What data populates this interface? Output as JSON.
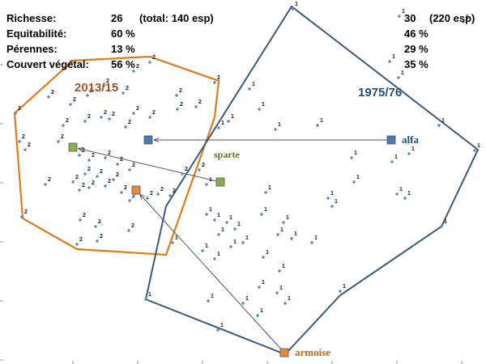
{
  "chart_data": {
    "type": "scatter",
    "title": "",
    "xlabel": "",
    "ylabel": "",
    "grid": false,
    "stats": {
      "rows": [
        {
          "label": "Richesse:",
          "v1": "26",
          "note1": "(total: 140 esp)",
          "v2": "30",
          "note2": "(220 esp)"
        },
        {
          "label": "Equitabilité:",
          "v1": "60 %",
          "note1": "",
          "v2": "46 %",
          "note2": ""
        },
        {
          "label": "Pérennes:",
          "v1": "13 %",
          "note1": "",
          "v2": "29 %",
          "note2": ""
        },
        {
          "label": "Couvert végétal:",
          "v1": "56 %",
          "note1": "",
          "v2": "35 %",
          "note2": ""
        }
      ]
    },
    "groups": [
      {
        "name": "2013/15",
        "color": "#e07b1a",
        "hull": [
          [
            18,
            140
          ],
          [
            90,
            75
          ],
          [
            185,
            70
          ],
          [
            270,
            100
          ],
          [
            265,
            145
          ],
          [
            205,
            315
          ],
          [
            95,
            308
          ],
          [
            28,
            270
          ]
        ]
      },
      {
        "name": "1975/76",
        "color": "#3a5a7d",
        "hull": [
          [
            360,
            8
          ],
          [
            590,
            185
          ],
          [
            545,
            280
          ],
          [
            420,
            365
          ],
          [
            352,
            438
          ],
          [
            180,
            370
          ],
          [
            205,
            255
          ]
        ]
      }
    ],
    "points": [
      {
        "x": 361,
        "y": 11,
        "g": "1"
      },
      {
        "x": 493,
        "y": 20,
        "g": "1"
      },
      {
        "x": 572,
        "y": 27,
        "g": "1"
      },
      {
        "x": 185,
        "y": 77,
        "g": "2"
      },
      {
        "x": 265,
        "y": 102,
        "g": "2"
      },
      {
        "x": 481,
        "y": 76,
        "g": "1"
      },
      {
        "x": 492,
        "y": 96,
        "g": "1"
      },
      {
        "x": 19,
        "y": 140,
        "g": "2"
      },
      {
        "x": 60,
        "y": 120,
        "g": "2"
      },
      {
        "x": 87,
        "y": 129,
        "g": "2"
      },
      {
        "x": 108,
        "y": 118,
        "g": "2"
      },
      {
        "x": 128,
        "y": 106,
        "g": "2"
      },
      {
        "x": 152,
        "y": 115,
        "g": "2"
      },
      {
        "x": 165,
        "y": 88,
        "g": "2"
      },
      {
        "x": 218,
        "y": 118,
        "g": "2"
      },
      {
        "x": 308,
        "y": 110,
        "g": "1"
      },
      {
        "x": 242,
        "y": 132,
        "g": "2"
      },
      {
        "x": 219,
        "y": 135,
        "g": "2"
      },
      {
        "x": 185,
        "y": 145,
        "g": "2"
      },
      {
        "x": 78,
        "y": 155,
        "g": "2"
      },
      {
        "x": 105,
        "y": 150,
        "g": "2"
      },
      {
        "x": 125,
        "y": 145,
        "g": "2"
      },
      {
        "x": 135,
        "y": 147,
        "g": "2"
      },
      {
        "x": 155,
        "y": 157,
        "g": "2"
      },
      {
        "x": 165,
        "y": 140,
        "g": "2"
      },
      {
        "x": 320,
        "y": 135,
        "g": "1"
      },
      {
        "x": 340,
        "y": 160,
        "g": "1"
      },
      {
        "x": 392,
        "y": 155,
        "g": "1"
      },
      {
        "x": 282,
        "y": 150,
        "g": "1"
      },
      {
        "x": 270,
        "y": 158,
        "g": "1"
      },
      {
        "x": 542,
        "y": 155,
        "g": "1"
      },
      {
        "x": 24,
        "y": 175,
        "g": "2"
      },
      {
        "x": 31,
        "y": 185,
        "g": "2"
      },
      {
        "x": 72,
        "y": 175,
        "g": "2"
      },
      {
        "x": 98,
        "y": 192,
        "g": "2"
      },
      {
        "x": 110,
        "y": 198,
        "g": "2"
      },
      {
        "x": 130,
        "y": 195,
        "g": "2"
      },
      {
        "x": 145,
        "y": 203,
        "g": "2"
      },
      {
        "x": 160,
        "y": 210,
        "g": "2"
      },
      {
        "x": 105,
        "y": 215,
        "g": "2"
      },
      {
        "x": 120,
        "y": 218,
        "g": "2"
      },
      {
        "x": 140,
        "y": 222,
        "g": "2"
      },
      {
        "x": 90,
        "y": 225,
        "g": "2"
      },
      {
        "x": 98,
        "y": 235,
        "g": "2"
      },
      {
        "x": 110,
        "y": 232,
        "g": "2"
      },
      {
        "x": 130,
        "y": 230,
        "g": "2"
      },
      {
        "x": 56,
        "y": 228,
        "g": "2"
      },
      {
        "x": 150,
        "y": 238,
        "g": "2"
      },
      {
        "x": 160,
        "y": 248,
        "g": "2"
      },
      {
        "x": 182,
        "y": 245,
        "g": "2"
      },
      {
        "x": 195,
        "y": 240,
        "g": "2"
      },
      {
        "x": 210,
        "y": 242,
        "g": "2"
      },
      {
        "x": 225,
        "y": 215,
        "g": "2"
      },
      {
        "x": 246,
        "y": 210,
        "g": "2"
      },
      {
        "x": 255,
        "y": 228,
        "g": "1"
      },
      {
        "x": 27,
        "y": 268,
        "g": "2"
      },
      {
        "x": 99,
        "y": 272,
        "g": "2"
      },
      {
        "x": 118,
        "y": 280,
        "g": "2"
      },
      {
        "x": 159,
        "y": 285,
        "g": "2"
      },
      {
        "x": 95,
        "y": 302,
        "g": "2"
      },
      {
        "x": 120,
        "y": 298,
        "g": "2"
      },
      {
        "x": 434,
        "y": 195,
        "g": "1"
      },
      {
        "x": 484,
        "y": 200,
        "g": "1"
      },
      {
        "x": 505,
        "y": 190,
        "g": "1"
      },
      {
        "x": 437,
        "y": 225,
        "g": "1"
      },
      {
        "x": 490,
        "y": 240,
        "g": "1"
      },
      {
        "x": 500,
        "y": 245,
        "g": "1"
      },
      {
        "x": 405,
        "y": 245,
        "g": "1"
      },
      {
        "x": 410,
        "y": 255,
        "g": "1"
      },
      {
        "x": 328,
        "y": 238,
        "g": "1"
      },
      {
        "x": 323,
        "y": 265,
        "g": "1"
      },
      {
        "x": 350,
        "y": 275,
        "g": "1"
      },
      {
        "x": 343,
        "y": 290,
        "g": "1"
      },
      {
        "x": 360,
        "y": 295,
        "g": "1"
      },
      {
        "x": 385,
        "y": 300,
        "g": "1"
      },
      {
        "x": 255,
        "y": 265,
        "g": "1"
      },
      {
        "x": 265,
        "y": 272,
        "g": "1"
      },
      {
        "x": 280,
        "y": 275,
        "g": "1"
      },
      {
        "x": 290,
        "y": 283,
        "g": "1"
      },
      {
        "x": 270,
        "y": 290,
        "g": "1"
      },
      {
        "x": 300,
        "y": 300,
        "g": "1"
      },
      {
        "x": 285,
        "y": 305,
        "g": "1"
      },
      {
        "x": 250,
        "y": 310,
        "g": "1"
      },
      {
        "x": 265,
        "y": 320,
        "g": "1"
      },
      {
        "x": 325,
        "y": 318,
        "g": "1"
      },
      {
        "x": 345,
        "y": 335,
        "g": "1"
      },
      {
        "x": 213,
        "y": 300,
        "g": "1"
      },
      {
        "x": 180,
        "y": 370,
        "g": "1"
      },
      {
        "x": 257,
        "y": 372,
        "g": "1"
      },
      {
        "x": 300,
        "y": 375,
        "g": "1"
      },
      {
        "x": 320,
        "y": 355,
        "g": "1"
      },
      {
        "x": 342,
        "y": 362,
        "g": "1"
      },
      {
        "x": 352,
        "y": 375,
        "g": "1"
      },
      {
        "x": 318,
        "y": 390,
        "g": "1"
      },
      {
        "x": 420,
        "y": 360,
        "g": "1"
      },
      {
        "x": 269,
        "y": 408,
        "g": "1"
      },
      {
        "x": 545,
        "y": 280,
        "g": "1"
      },
      {
        "x": 586,
        "y": 186,
        "g": "1"
      }
    ],
    "centroids": [
      {
        "name": "alfa",
        "type": "1975/76",
        "x": 483,
        "y": 173,
        "color": "#4a7ab5",
        "label_color": "#1f4e79"
      },
      {
        "name": "sparte",
        "type": "2013/15",
        "x": 90,
        "y": 182,
        "color": "#8ab04a",
        "label_color": ""
      },
      {
        "name": "sparte",
        "type": "1975/76",
        "x": 272,
        "y": 225,
        "color": "#8ab04a",
        "label_color": "#5a7a1a"
      },
      {
        "name": "armoise",
        "type": "2013/15",
        "x": 168,
        "y": 235,
        "color": "#e8883a",
        "label_color": ""
      },
      {
        "name": "alfa",
        "type": "2013/15",
        "x": 183,
        "y": 173,
        "color": "#4a7ab5",
        "label_color": ""
      },
      {
        "name": "armoise",
        "type": "1975/76",
        "x": 351,
        "y": 436,
        "color": "#e8883a",
        "label_color": "#c0651a"
      }
    ],
    "arrows": [
      {
        "from": "alfa-1975/76",
        "to": "alfa-2013/15"
      },
      {
        "from": "sparte-1975/76",
        "to": "sparte-2013/15"
      },
      {
        "from": "armoise-1975/76",
        "to": "armoise-2013/15"
      }
    ],
    "yticks": 7
  }
}
